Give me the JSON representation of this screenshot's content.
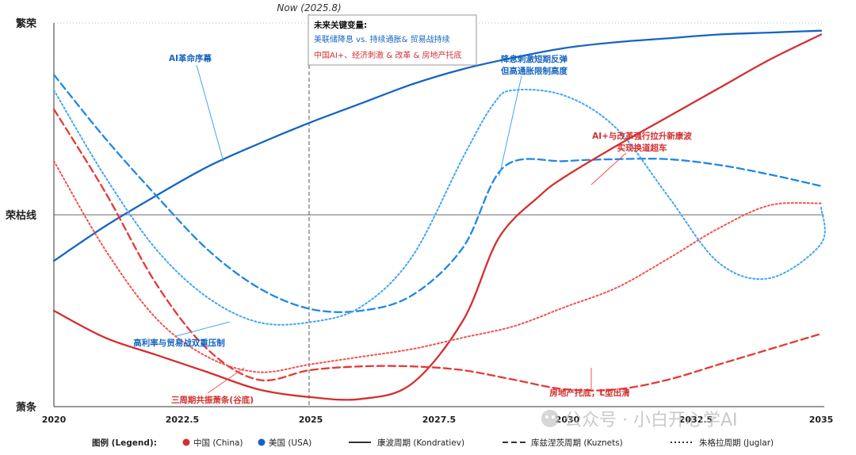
{
  "chart_data": {
    "type": "line",
    "x_range": [
      2020,
      2035
    ],
    "x_ticks": [
      "2020",
      "2022.5",
      "2025",
      "2027.5",
      "2030",
      "2032.5",
      "2035"
    ],
    "y_ticks": [
      "繁荣",
      "荣枯线",
      "萧条"
    ],
    "y_range": [
      -1,
      1
    ],
    "grid": "dotted horizontal at top; solid horizontal at 荣枯线",
    "now_marker": {
      "x": 2025,
      "label": "Now (2025.8)"
    },
    "series": [
      {
        "country": "美国",
        "cycle": "Kondratiev",
        "color": "#1565c0",
        "style": "solid",
        "points": [
          [
            2020,
            -0.24
          ],
          [
            2021,
            -0.06
          ],
          [
            2022,
            0.1
          ],
          [
            2023,
            0.25
          ],
          [
            2024,
            0.37
          ],
          [
            2025,
            0.48
          ],
          [
            2026,
            0.58
          ],
          [
            2027,
            0.68
          ],
          [
            2028,
            0.76
          ],
          [
            2029,
            0.82
          ],
          [
            2030,
            0.87
          ],
          [
            2031,
            0.9
          ],
          [
            2032,
            0.92
          ],
          [
            2033,
            0.94
          ],
          [
            2034,
            0.95
          ],
          [
            2035,
            0.96
          ]
        ]
      },
      {
        "country": "美国",
        "cycle": "Kuznets",
        "color": "#1e88e5",
        "style": "dashed",
        "points": [
          [
            2020,
            0.73
          ],
          [
            2021,
            0.4
          ],
          [
            2022,
            0.1
          ],
          [
            2023,
            -0.18
          ],
          [
            2024,
            -0.38
          ],
          [
            2025,
            -0.49
          ],
          [
            2026,
            -0.5
          ],
          [
            2027,
            -0.42
          ],
          [
            2028,
            -0.17
          ],
          [
            2028.8,
            0.25
          ],
          [
            2030,
            0.28
          ],
          [
            2031,
            0.29
          ],
          [
            2032,
            0.29
          ],
          [
            2033,
            0.26
          ],
          [
            2034,
            0.21
          ],
          [
            2035,
            0.15
          ]
        ]
      },
      {
        "country": "美国",
        "cycle": "Juglar",
        "color": "#42a5f5",
        "style": "dotted",
        "points": [
          [
            2020,
            0.65
          ],
          [
            2021,
            0.2
          ],
          [
            2022,
            -0.18
          ],
          [
            2023,
            -0.43
          ],
          [
            2024,
            -0.56
          ],
          [
            2025,
            -0.56
          ],
          [
            2026,
            -0.48
          ],
          [
            2027,
            -0.22
          ],
          [
            2028,
            0.3
          ],
          [
            2028.6,
            0.58
          ],
          [
            2029,
            0.65
          ],
          [
            2030,
            0.62
          ],
          [
            2031,
            0.45
          ],
          [
            2032,
            0.1
          ],
          [
            2033,
            -0.25
          ],
          [
            2034,
            -0.33
          ],
          [
            2035,
            -0.15
          ],
          [
            2035,
            0.04
          ]
        ]
      },
      {
        "country": "中国",
        "cycle": "Kondratiev",
        "color": "#d32f2f",
        "style": "solid",
        "points": [
          [
            2020,
            -0.5
          ],
          [
            2021,
            -0.64
          ],
          [
            2022,
            -0.73
          ],
          [
            2023,
            -0.82
          ],
          [
            2024,
            -0.91
          ],
          [
            2025,
            -0.95
          ],
          [
            2026,
            -0.96
          ],
          [
            2027,
            -0.88
          ],
          [
            2028,
            -0.55
          ],
          [
            2028.7,
            -0.12
          ],
          [
            2029.5,
            0.1
          ],
          [
            2030,
            0.2
          ],
          [
            2031,
            0.36
          ],
          [
            2032,
            0.51
          ],
          [
            2033,
            0.66
          ],
          [
            2034,
            0.81
          ],
          [
            2035,
            0.94
          ]
        ]
      },
      {
        "country": "中国",
        "cycle": "Kuznets",
        "color": "#e53935",
        "style": "dashed",
        "points": [
          [
            2020,
            0.55
          ],
          [
            2021,
            0.12
          ],
          [
            2022,
            -0.36
          ],
          [
            2023,
            -0.7
          ],
          [
            2024,
            -0.86
          ],
          [
            2025,
            -0.81
          ],
          [
            2026,
            -0.79
          ],
          [
            2027,
            -0.79
          ],
          [
            2028,
            -0.81
          ],
          [
            2029,
            -0.86
          ],
          [
            2030,
            -0.91
          ],
          [
            2031,
            -0.91
          ],
          [
            2032,
            -0.86
          ],
          [
            2033,
            -0.78
          ],
          [
            2034,
            -0.7
          ],
          [
            2035,
            -0.62
          ]
        ]
      },
      {
        "country": "中国",
        "cycle": "Juglar",
        "color": "#ef5350",
        "style": "dotted",
        "points": [
          [
            2020,
            0.28
          ],
          [
            2021,
            -0.18
          ],
          [
            2022,
            -0.54
          ],
          [
            2023,
            -0.74
          ],
          [
            2024,
            -0.82
          ],
          [
            2025,
            -0.78
          ],
          [
            2026,
            -0.74
          ],
          [
            2027,
            -0.7
          ],
          [
            2028,
            -0.64
          ],
          [
            2029,
            -0.58
          ],
          [
            2030,
            -0.48
          ],
          [
            2031,
            -0.38
          ],
          [
            2032,
            -0.23
          ],
          [
            2033,
            -0.07
          ],
          [
            2034,
            0.05
          ],
          [
            2035,
            0.06
          ]
        ]
      }
    ]
  },
  "now_label": "Now (2025.8)",
  "key_box": {
    "title": "未来关键变量:",
    "line_us": "美联储降息 vs. 持续通胀& 贸易战持续",
    "line_cn": "中国AI+、经济刺激 & 改革 & 房地产托底"
  },
  "annotations": {
    "us_ai": "AI革命序幕",
    "us_rebound_1": "降息刺激短期反弹",
    "us_rebound_2": "但高通胀限制高度",
    "us_pressure": "高利率与贸易战双重压制",
    "cn_reform_1": "AI+与改革强行拉升新康波",
    "cn_reform_2": "实现换道超车",
    "cn_trough": "三周期共振萧条(谷底)",
    "cn_property": "房地产托底，L型出清"
  },
  "legend": {
    "title": "图例 (Legend):",
    "china": "中国 (China)",
    "usa": "美国 (USA)",
    "kondratiev": "康波周期 (Kondratiev)",
    "kuznets": "库兹涅茨周期 (Kuznets)",
    "juglar": "朱格拉周期 (Juglar)",
    "china_color": "#d32f2f",
    "usa_color": "#1565c0"
  },
  "watermark": "公众号 · 小白开心学AI"
}
